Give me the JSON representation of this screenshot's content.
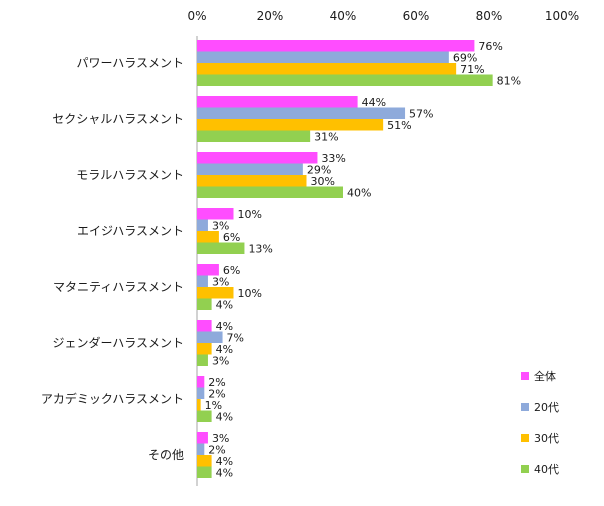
{
  "chart_data": {
    "type": "bar",
    "orientation": "horizontal",
    "categories": [
      "パワーハラスメント",
      "セクシャルハラスメント",
      "モラルハラスメント",
      "エイジハラスメント",
      "マタニティハラスメント",
      "ジェンダーハラスメント",
      "アカデミックハラスメント",
      "その他"
    ],
    "series": [
      {
        "name": "全体",
        "color": "#ff4dff",
        "values": [
          76,
          44,
          33,
          10,
          6,
          4,
          2,
          3
        ]
      },
      {
        "name": "20代",
        "color": "#8eaadb",
        "values": [
          69,
          57,
          29,
          3,
          3,
          7,
          2,
          2
        ]
      },
      {
        "name": "30代",
        "color": "#ffc000",
        "values": [
          71,
          51,
          30,
          6,
          10,
          4,
          1,
          4
        ]
      },
      {
        "name": "40代",
        "color": "#92d050",
        "values": [
          81,
          31,
          40,
          13,
          4,
          3,
          4,
          4
        ]
      }
    ],
    "xlim": [
      0,
      100
    ],
    "xticks": [
      "0%",
      "20%",
      "40%",
      "60%",
      "80%",
      "100%"
    ],
    "value_suffix": "%",
    "grid": false,
    "legend_position": "bottom-right"
  }
}
